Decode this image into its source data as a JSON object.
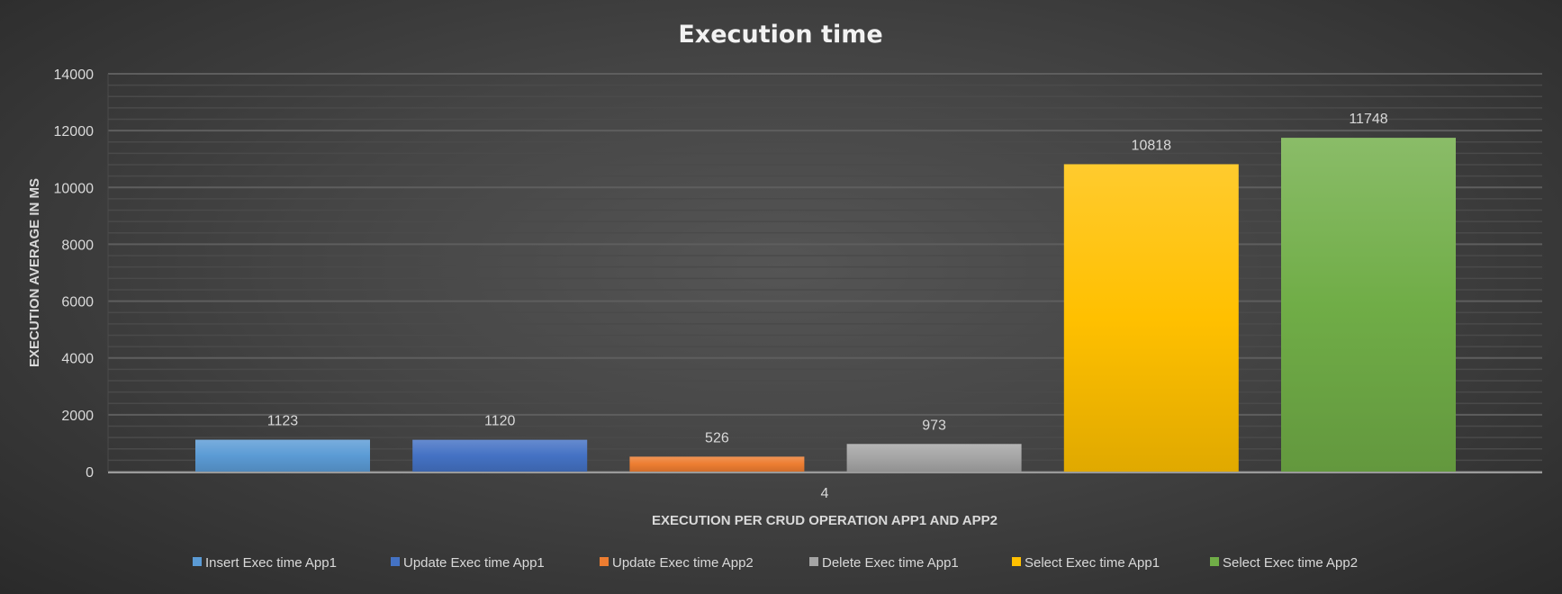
{
  "chart_data": {
    "type": "bar",
    "title": "Execution time",
    "xlabel": "EXECUTION PER CRUD OPERATION APP1 AND APP2",
    "ylabel": "EXECUTION  AVERAGE IN MS",
    "categories": [
      "4"
    ],
    "ylim": [
      0,
      14000
    ],
    "yticks": [
      0,
      2000,
      4000,
      6000,
      8000,
      10000,
      12000,
      14000
    ],
    "grid": true,
    "legend_position": "bottom",
    "data_labels": true,
    "series": [
      {
        "name": "Insert Exec time App1",
        "values": [
          1123
        ],
        "color": "#5b9bd5"
      },
      {
        "name": "Update Exec time App1",
        "values": [
          1120
        ],
        "color": "#4472c4"
      },
      {
        "name": "Update Exec time App2",
        "values": [
          526
        ],
        "color": "#ed7d31"
      },
      {
        "name": "Delete Exec time App1",
        "values": [
          973
        ],
        "color": "#a5a5a5"
      },
      {
        "name": "Select Exec time App1",
        "values": [
          10818
        ],
        "color": "#ffc000"
      },
      {
        "name": "Select Exec time App2",
        "values": [
          11748
        ],
        "color": "#70ad47"
      }
    ]
  }
}
